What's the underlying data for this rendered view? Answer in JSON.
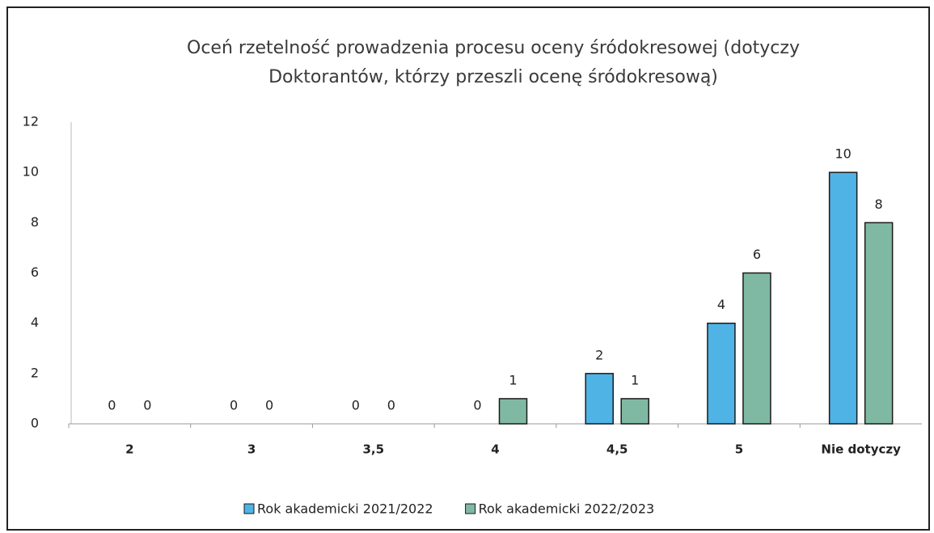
{
  "chart_data": {
    "type": "bar",
    "title": "Oceń rzetelność prowadzenia procesu oceny śródokresowej (dotyczy Doktorantów, którzy przeszli ocenę śródokresową)",
    "categories": [
      "2",
      "3",
      "3,5",
      "4",
      "4,5",
      "5",
      "Nie dotyczy"
    ],
    "series": [
      {
        "name": "Rok akademicki 2021/2022",
        "color": "#4fb3e6",
        "values": [
          0,
          0,
          0,
          0,
          2,
          4,
          10
        ]
      },
      {
        "name": "Rok akademicki 2022/2023",
        "color": "#80b9a3",
        "values": [
          0,
          0,
          0,
          1,
          1,
          6,
          8
        ]
      }
    ],
    "ylim": [
      0,
      12
    ],
    "yticks": [
      0,
      2,
      4,
      6,
      8,
      10,
      12
    ],
    "grid": false,
    "legend": "bottom"
  }
}
